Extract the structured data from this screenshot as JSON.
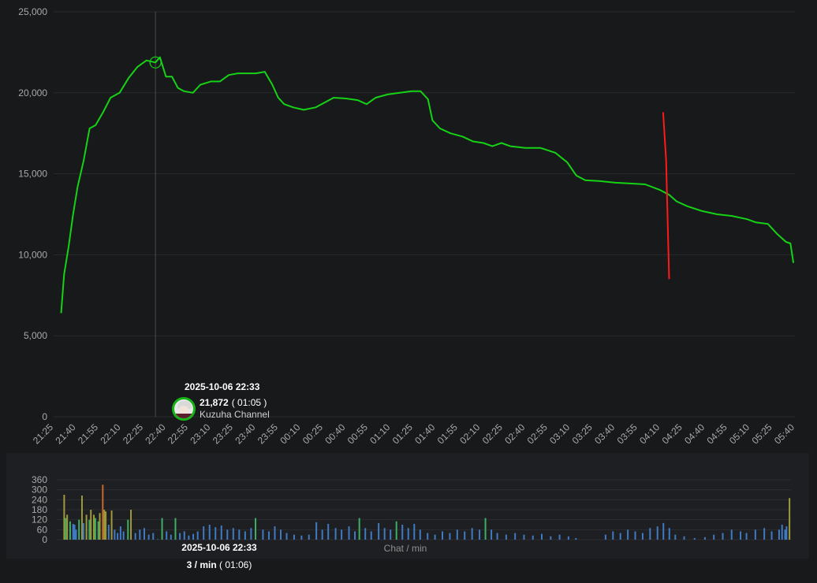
{
  "chart_data": [
    {
      "type": "line",
      "series": [
        {
          "values": [
            [
              "2025-10-06 21:30",
              6400
            ],
            [
              "2025-10-06 21:32",
              8800
            ],
            [
              "2025-10-06 21:35",
              10500
            ],
            [
              "2025-10-06 21:38",
              12500
            ],
            [
              "2025-10-06 21:41",
              14200
            ],
            [
              "2025-10-06 21:45",
              15800
            ],
            [
              "2025-10-06 21:49",
              17800
            ],
            [
              "2025-10-06 21:53",
              18000
            ],
            [
              "2025-10-06 21:58",
              18800
            ],
            [
              "2025-10-06 22:03",
              19700
            ],
            [
              "2025-10-06 22:09",
              20000
            ],
            [
              "2025-10-06 22:15",
              20900
            ],
            [
              "2025-10-06 22:21",
              21600
            ],
            [
              "2025-10-06 22:27",
              22000
            ],
            [
              "2025-10-06 22:33",
              21872
            ],
            [
              "2025-10-06 22:36",
              22200
            ],
            [
              "2025-10-06 22:40",
              21000
            ],
            [
              "2025-10-06 22:44",
              21000
            ],
            [
              "2025-10-06 22:48",
              20300
            ],
            [
              "2025-10-06 22:52",
              20100
            ],
            [
              "2025-10-06 22:58",
              20000
            ],
            [
              "2025-10-06 23:03",
              20500
            ],
            [
              "2025-10-06 23:10",
              20700
            ],
            [
              "2025-10-06 23:16",
              20700
            ],
            [
              "2025-10-06 23:22",
              21100
            ],
            [
              "2025-10-06 23:28",
              21200
            ],
            [
              "2025-10-06 23:34",
              21200
            ],
            [
              "2025-10-06 23:40",
              21200
            ],
            [
              "2025-10-06 23:46",
              21300
            ],
            [
              "2025-10-06 23:51",
              20500
            ],
            [
              "2025-10-06 23:55",
              19700
            ],
            [
              "2025-10-06 23:59",
              19300
            ],
            [
              "2025-10-07 00:05",
              19100
            ],
            [
              "2025-10-07 00:12",
              18950
            ],
            [
              "2025-10-07 00:20",
              19100
            ],
            [
              "2025-10-07 00:26",
              19400
            ],
            [
              "2025-10-07 00:32",
              19700
            ],
            [
              "2025-10-07 00:40",
              19650
            ],
            [
              "2025-10-07 00:48",
              19550
            ],
            [
              "2025-10-07 00:54",
              19300
            ],
            [
              "2025-10-07 01:00",
              19700
            ],
            [
              "2025-10-07 01:08",
              19900
            ],
            [
              "2025-10-07 01:16",
              20000
            ],
            [
              "2025-10-07 01:24",
              20100
            ],
            [
              "2025-10-07 01:30",
              20100
            ],
            [
              "2025-10-07 01:35",
              19600
            ],
            [
              "2025-10-07 01:38",
              18300
            ],
            [
              "2025-10-07 01:43",
              17800
            ],
            [
              "2025-10-07 01:50",
              17500
            ],
            [
              "2025-10-07 01:58",
              17300
            ],
            [
              "2025-10-07 02:05",
              17000
            ],
            [
              "2025-10-07 02:12",
              16900
            ],
            [
              "2025-10-07 02:18",
              16700
            ],
            [
              "2025-10-07 02:24",
              16900
            ],
            [
              "2025-10-07 02:30",
              16700
            ],
            [
              "2025-10-07 02:40",
              16600
            ],
            [
              "2025-10-07 02:50",
              16600
            ],
            [
              "2025-10-07 03:00",
              16300
            ],
            [
              "2025-10-07 03:08",
              15700
            ],
            [
              "2025-10-07 03:14",
              14900
            ],
            [
              "2025-10-07 03:20",
              14600
            ],
            [
              "2025-10-07 03:30",
              14550
            ],
            [
              "2025-10-07 03:40",
              14450
            ],
            [
              "2025-10-07 03:50",
              14400
            ],
            [
              "2025-10-07 04:00",
              14350
            ],
            [
              "2025-10-07 04:10",
              14000
            ],
            [
              "2025-10-07 04:16",
              13700
            ],
            [
              "2025-10-07 04:21",
              13300
            ],
            [
              "2025-10-07 04:28",
              13000
            ],
            [
              "2025-10-07 04:38",
              12700
            ],
            [
              "2025-10-07 04:48",
              12500
            ],
            [
              "2025-10-07 04:58",
              12400
            ],
            [
              "2025-10-07 05:08",
              12200
            ],
            [
              "2025-10-07 05:14",
              12000
            ],
            [
              "2025-10-07 05:22",
              11900
            ],
            [
              "2025-10-07 05:28",
              11300
            ],
            [
              "2025-10-07 05:34",
              10800
            ],
            [
              "2025-10-07 05:37",
              10700
            ],
            [
              "2025-10-07 05:39",
              9500
            ]
          ]
        },
        {
          "color": "#ff1a1a",
          "values": [
            [
              "2025-10-07 04:12",
              18800
            ],
            [
              "2025-10-07 04:14",
              15800
            ],
            [
              "2025-10-07 04:16",
              8500
            ]
          ]
        }
      ],
      "x_start": "2025-10-06 21:25",
      "x_end": "2025-10-07 05:40",
      "x_tick_labels": [
        "21:25",
        "21:40",
        "21:55",
        "22:10",
        "22:25",
        "22:40",
        "22:55",
        "23:10",
        "23:25",
        "23:40",
        "23:55",
        "00:10",
        "00:25",
        "00:40",
        "00:55",
        "01:10",
        "01:25",
        "01:40",
        "01:55",
        "02:10",
        "02:25",
        "02:40",
        "02:55",
        "03:10",
        "03:25",
        "03:40",
        "03:55",
        "04:10",
        "04:25",
        "04:40",
        "04:55",
        "05:10",
        "05:25",
        "05:40"
      ],
      "y_ticks": [
        0,
        5000,
        10000,
        15000,
        20000,
        25000
      ],
      "y_tick_labels": [
        "0",
        "5,000",
        "10,000",
        "15,000",
        "20,000",
        "25,000"
      ],
      "ylim": [
        0,
        25000
      ],
      "grid": true,
      "line_color": "#16d216",
      "highlight": {
        "time": "2025-10-06 22:33",
        "value": 21872
      }
    },
    {
      "type": "bar",
      "title": "Chat / min",
      "ylim": [
        0,
        360
      ],
      "y_ticks": [
        0,
        60,
        120,
        180,
        240,
        300,
        360
      ],
      "x_start": "2025-10-06 21:25",
      "x_end": "2025-10-07 05:40",
      "bar_color": "#3f7ac2",
      "high_color_green": "#3fae64",
      "high_color_olive": "#9c9a3a",
      "high_color_orange": "#c9682a",
      "values": [
        [
          "2025-10-06 21:30",
          270
        ],
        [
          "2025-10-06 21:31",
          130
        ],
        [
          "2025-10-06 21:32",
          150
        ],
        [
          "2025-10-06 21:34",
          110
        ],
        [
          "2025-10-06 21:36",
          95
        ],
        [
          "2025-10-06 21:37",
          90
        ],
        [
          "2025-10-06 21:38",
          60
        ],
        [
          "2025-10-06 21:40",
          120
        ],
        [
          "2025-10-06 21:42",
          265
        ],
        [
          "2025-10-06 21:43",
          100
        ],
        [
          "2025-10-06 21:45",
          150
        ],
        [
          "2025-10-06 21:47",
          120
        ],
        [
          "2025-10-06 21:48",
          180
        ],
        [
          "2025-10-06 21:50",
          150
        ],
        [
          "2025-10-06 21:51",
          130
        ],
        [
          "2025-10-06 21:53",
          110
        ],
        [
          "2025-10-06 21:54",
          160
        ],
        [
          "2025-10-06 21:56",
          330
        ],
        [
          "2025-10-06 21:57",
          180
        ],
        [
          "2025-10-06 21:58",
          170
        ],
        [
          "2025-10-06 22:00",
          90
        ],
        [
          "2025-10-06 22:02",
          175
        ],
        [
          "2025-10-06 22:04",
          60
        ],
        [
          "2025-10-06 22:06",
          40
        ],
        [
          "2025-10-06 22:08",
          80
        ],
        [
          "2025-10-06 22:10",
          50
        ],
        [
          "2025-10-06 22:13",
          120
        ],
        [
          "2025-10-06 22:15",
          180
        ],
        [
          "2025-10-06 22:18",
          40
        ],
        [
          "2025-10-06 22:21",
          60
        ],
        [
          "2025-10-06 22:24",
          70
        ],
        [
          "2025-10-06 22:27",
          30
        ],
        [
          "2025-10-06 22:30",
          40
        ],
        [
          "2025-10-06 22:33",
          3
        ],
        [
          "2025-10-06 22:36",
          130
        ],
        [
          "2025-10-06 22:39",
          50
        ],
        [
          "2025-10-06 22:42",
          30
        ],
        [
          "2025-10-06 22:45",
          130
        ],
        [
          "2025-10-06 22:48",
          40
        ],
        [
          "2025-10-06 22:51",
          50
        ],
        [
          "2025-10-06 22:54",
          25
        ],
        [
          "2025-10-06 22:57",
          35
        ],
        [
          "2025-10-06 23:00",
          50
        ],
        [
          "2025-10-06 23:04",
          80
        ],
        [
          "2025-10-06 23:08",
          90
        ],
        [
          "2025-10-06 23:12",
          75
        ],
        [
          "2025-10-06 23:16",
          85
        ],
        [
          "2025-10-06 23:20",
          60
        ],
        [
          "2025-10-06 23:24",
          70
        ],
        [
          "2025-10-06 23:28",
          60
        ],
        [
          "2025-10-06 23:32",
          50
        ],
        [
          "2025-10-06 23:36",
          70
        ],
        [
          "2025-10-06 23:39",
          130
        ],
        [
          "2025-10-06 23:44",
          60
        ],
        [
          "2025-10-06 23:48",
          50
        ],
        [
          "2025-10-06 23:52",
          80
        ],
        [
          "2025-10-06 23:56",
          60
        ],
        [
          "2025-10-07 00:00",
          40
        ],
        [
          "2025-10-07 00:05",
          30
        ],
        [
          "2025-10-07 00:10",
          25
        ],
        [
          "2025-10-07 00:15",
          30
        ],
        [
          "2025-10-07 00:20",
          105
        ],
        [
          "2025-10-07 00:24",
          60
        ],
        [
          "2025-10-07 00:28",
          95
        ],
        [
          "2025-10-07 00:33",
          70
        ],
        [
          "2025-10-07 00:37",
          60
        ],
        [
          "2025-10-07 00:42",
          80
        ],
        [
          "2025-10-07 00:46",
          50
        ],
        [
          "2025-10-07 00:49",
          130
        ],
        [
          "2025-10-07 00:53",
          70
        ],
        [
          "2025-10-07 00:57",
          50
        ],
        [
          "2025-10-07 01:02",
          100
        ],
        [
          "2025-10-07 01:06",
          70
        ],
        [
          "2025-10-07 01:10",
          60
        ],
        [
          "2025-10-07 01:14",
          110
        ],
        [
          "2025-10-07 01:18",
          90
        ],
        [
          "2025-10-07 01:22",
          70
        ],
        [
          "2025-10-07 01:26",
          95
        ],
        [
          "2025-10-07 01:30",
          60
        ],
        [
          "2025-10-07 01:35",
          40
        ],
        [
          "2025-10-07 01:40",
          30
        ],
        [
          "2025-10-07 01:45",
          50
        ],
        [
          "2025-10-07 01:50",
          40
        ],
        [
          "2025-10-07 01:55",
          60
        ],
        [
          "2025-10-07 02:00",
          50
        ],
        [
          "2025-10-07 02:05",
          70
        ],
        [
          "2025-10-07 02:10",
          60
        ],
        [
          "2025-10-07 02:14",
          130
        ],
        [
          "2025-10-07 02:18",
          60
        ],
        [
          "2025-10-07 02:22",
          40
        ],
        [
          "2025-10-07 02:28",
          30
        ],
        [
          "2025-10-07 02:34",
          40
        ],
        [
          "2025-10-07 02:40",
          30
        ],
        [
          "2025-10-07 02:46",
          25
        ],
        [
          "2025-10-07 02:52",
          35
        ],
        [
          "2025-10-07 02:58",
          20
        ],
        [
          "2025-10-07 03:04",
          30
        ],
        [
          "2025-10-07 03:10",
          20
        ],
        [
          "2025-10-07 03:15",
          10
        ],
        [
          "2025-10-07 03:25",
          0
        ],
        [
          "2025-10-07 03:35",
          30
        ],
        [
          "2025-10-07 03:40",
          50
        ],
        [
          "2025-10-07 03:45",
          40
        ],
        [
          "2025-10-07 03:50",
          60
        ],
        [
          "2025-10-07 03:55",
          50
        ],
        [
          "2025-10-07 04:00",
          40
        ],
        [
          "2025-10-07 04:05",
          70
        ],
        [
          "2025-10-07 04:10",
          80
        ],
        [
          "2025-10-07 04:14",
          100
        ],
        [
          "2025-10-07 04:18",
          70
        ],
        [
          "2025-10-07 04:22",
          30
        ],
        [
          "2025-10-07 04:28",
          20
        ],
        [
          "2025-10-07 04:35",
          10
        ],
        [
          "2025-10-07 04:42",
          15
        ],
        [
          "2025-10-07 04:48",
          30
        ],
        [
          "2025-10-07 04:54",
          40
        ],
        [
          "2025-10-07 05:00",
          60
        ],
        [
          "2025-10-07 05:06",
          50
        ],
        [
          "2025-10-07 05:10",
          40
        ],
        [
          "2025-10-07 05:16",
          60
        ],
        [
          "2025-10-07 05:22",
          70
        ],
        [
          "2025-10-07 05:27",
          50
        ],
        [
          "2025-10-07 05:32",
          60
        ],
        [
          "2025-10-07 05:34",
          90
        ],
        [
          "2025-10-07 05:36",
          60
        ],
        [
          "2025-10-07 05:37",
          80
        ],
        [
          "2025-10-07 05:39",
          250
        ]
      ]
    }
  ],
  "tooltip_main": {
    "date": "2025-10-06 22:33",
    "value": "21,872",
    "duration": "( 01:05 )",
    "channel": "Kuzuha Channel"
  },
  "tooltip_sub": {
    "date": "2025-10-06 22:33",
    "rate": "3 / min",
    "duration": " ( 01:06)"
  }
}
